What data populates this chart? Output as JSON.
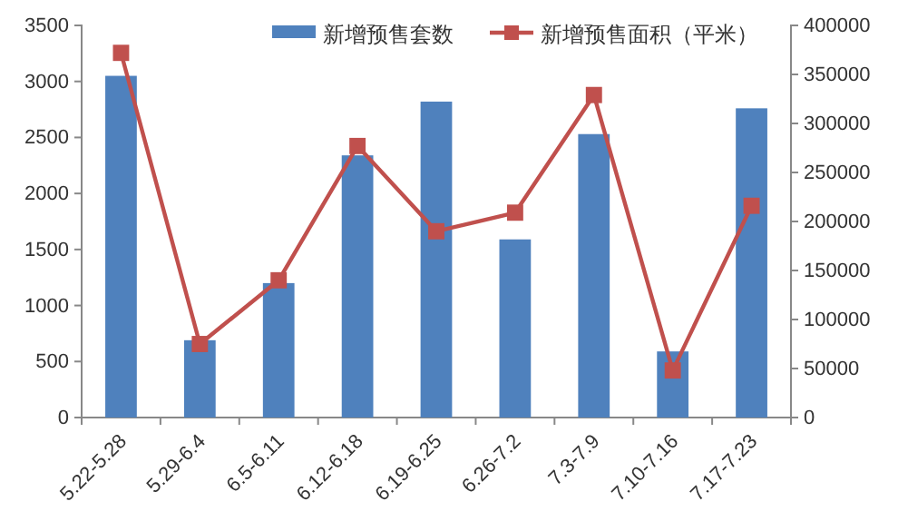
{
  "chart_data": {
    "type": "bar",
    "categories": [
      "5.22-5.28",
      "5.29-6.4",
      "6.5-6.11",
      "6.12-6.18",
      "6.19-6.25",
      "6.26-7.2",
      "7.3-7.9",
      "7.10-7.16",
      "7.17-7.23"
    ],
    "series": [
      {
        "name": "新增预售套数",
        "color": "#4f81bd",
        "values": [
          3050,
          690,
          1200,
          2340,
          2820,
          1590,
          2530,
          590,
          2760
        ]
      },
      {
        "name": "新增预售面积（平米）",
        "type": "line",
        "axis": "y2",
        "color": "#c0504d",
        "marker": "square",
        "values": [
          372000,
          75000,
          140000,
          277000,
          190000,
          209000,
          329000,
          48000,
          216000
        ]
      }
    ],
    "ylim": [
      0,
      3500
    ],
    "yticks": [
      0,
      500,
      1000,
      1500,
      2000,
      2500,
      3000,
      3500
    ],
    "y2lim": [
      0,
      400000
    ],
    "y2ticks": [
      0,
      50000,
      100000,
      150000,
      200000,
      250000,
      300000,
      350000,
      400000
    ],
    "legend": "top",
    "grid": false
  }
}
